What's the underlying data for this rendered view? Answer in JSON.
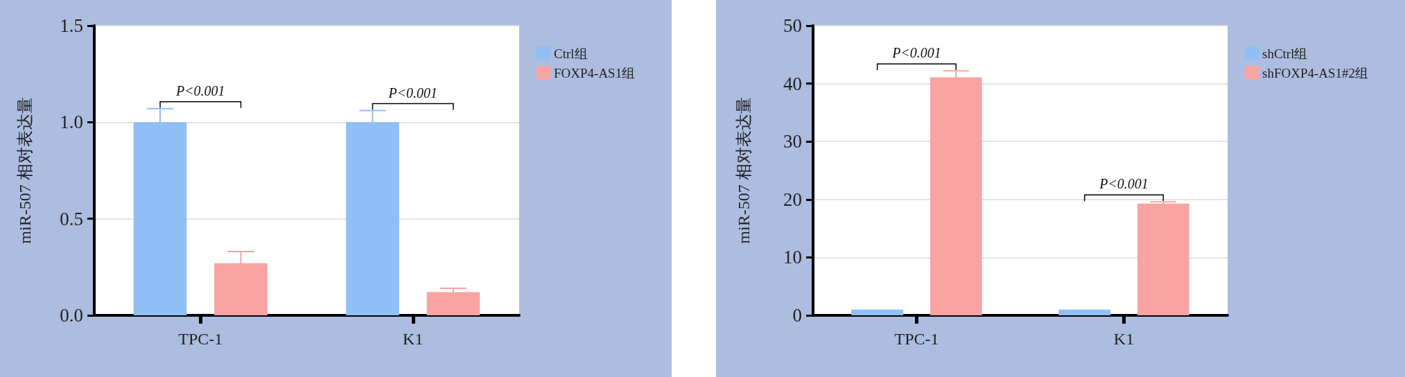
{
  "chart_data": [
    {
      "type": "bar",
      "ylabel": "miR-507 相对表达量",
      "categories": [
        "TPC-1",
        "K1"
      ],
      "series": [
        {
          "name": "Ctrl组",
          "color": "#90bff5",
          "values": [
            1.0,
            1.0
          ],
          "errors": [
            0.07,
            0.06
          ]
        },
        {
          "name": "FOXP4-AS1组",
          "color": "#f9a3a3",
          "values": [
            0.27,
            0.12
          ],
          "errors": [
            0.06,
            0.02
          ]
        }
      ],
      "ylim": [
        0,
        1.5
      ],
      "yticks": [
        {
          "value": 0,
          "label": "0.0"
        },
        0.5,
        {
          "value": 1,
          "label": "1.0"
        },
        1.5
      ],
      "grid": "y",
      "legend": "top right",
      "annotations": [
        "P<0.001",
        "P<0.001"
      ]
    },
    {
      "type": "bar",
      "ylabel": "miR-507 相对表达量",
      "categories": [
        "TPC-1",
        "K1"
      ],
      "series": [
        {
          "name": "shCtrl组",
          "color": "#90bff5",
          "values": [
            1.0,
            1.0
          ]
        },
        {
          "name": "shFOXP4-AS1#2组",
          "color": "#f9a3a3",
          "values": [
            41.1,
            19.3
          ],
          "errors": [
            1.1,
            0.3
          ]
        }
      ],
      "ylim": [
        0,
        50
      ],
      "yticks": [
        0,
        10,
        20,
        30,
        40,
        50
      ],
      "grid": "y",
      "legend": "top right",
      "annotations": [
        "P<0.001",
        "P<0.001"
      ]
    }
  ]
}
